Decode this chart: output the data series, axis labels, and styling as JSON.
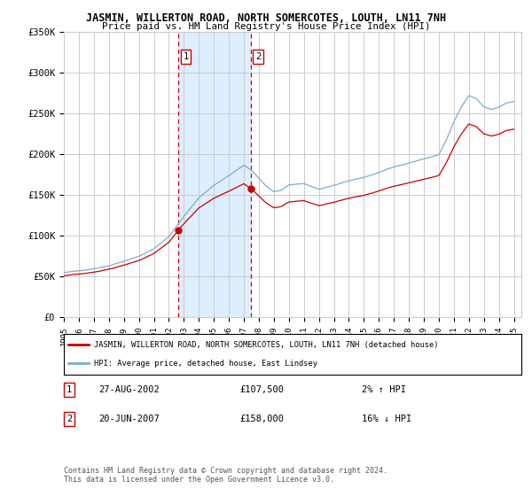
{
  "title": "JASMIN, WILLERTON ROAD, NORTH SOMERCOTES, LOUTH, LN11 7NH",
  "subtitle": "Price paid vs. HM Land Registry's House Price Index (HPI)",
  "legend_line1": "JASMIN, WILLERTON ROAD, NORTH SOMERCOTES, LOUTH, LN11 7NH (detached house)",
  "legend_line2": "HPI: Average price, detached house, East Lindsey",
  "transaction1_date": "27-AUG-2002",
  "transaction1_price": "£107,500",
  "transaction1_hpi": "2% ↑ HPI",
  "transaction2_date": "20-JUN-2007",
  "transaction2_price": "£158,000",
  "transaction2_hpi": "16% ↓ HPI",
  "footer": "Contains HM Land Registry data © Crown copyright and database right 2024.\nThis data is licensed under the Open Government Licence v3.0.",
  "red_color": "#cc0000",
  "blue_color": "#7aadcf",
  "shade_color": "#ddeeff",
  "grid_color": "#cccccc",
  "background_color": "#ffffff",
  "ylim": [
    0,
    350000
  ],
  "yticks": [
    0,
    50000,
    100000,
    150000,
    200000,
    250000,
    300000,
    350000
  ],
  "ytick_labels": [
    "£0",
    "£50K",
    "£100K",
    "£150K",
    "£200K",
    "£250K",
    "£300K",
    "£350K"
  ],
  "transaction1_x": 2002.65,
  "transaction2_x": 2007.47,
  "transaction1_y": 107500,
  "transaction2_y": 158000,
  "xlim_left": 1995.0,
  "xlim_right": 2025.5
}
